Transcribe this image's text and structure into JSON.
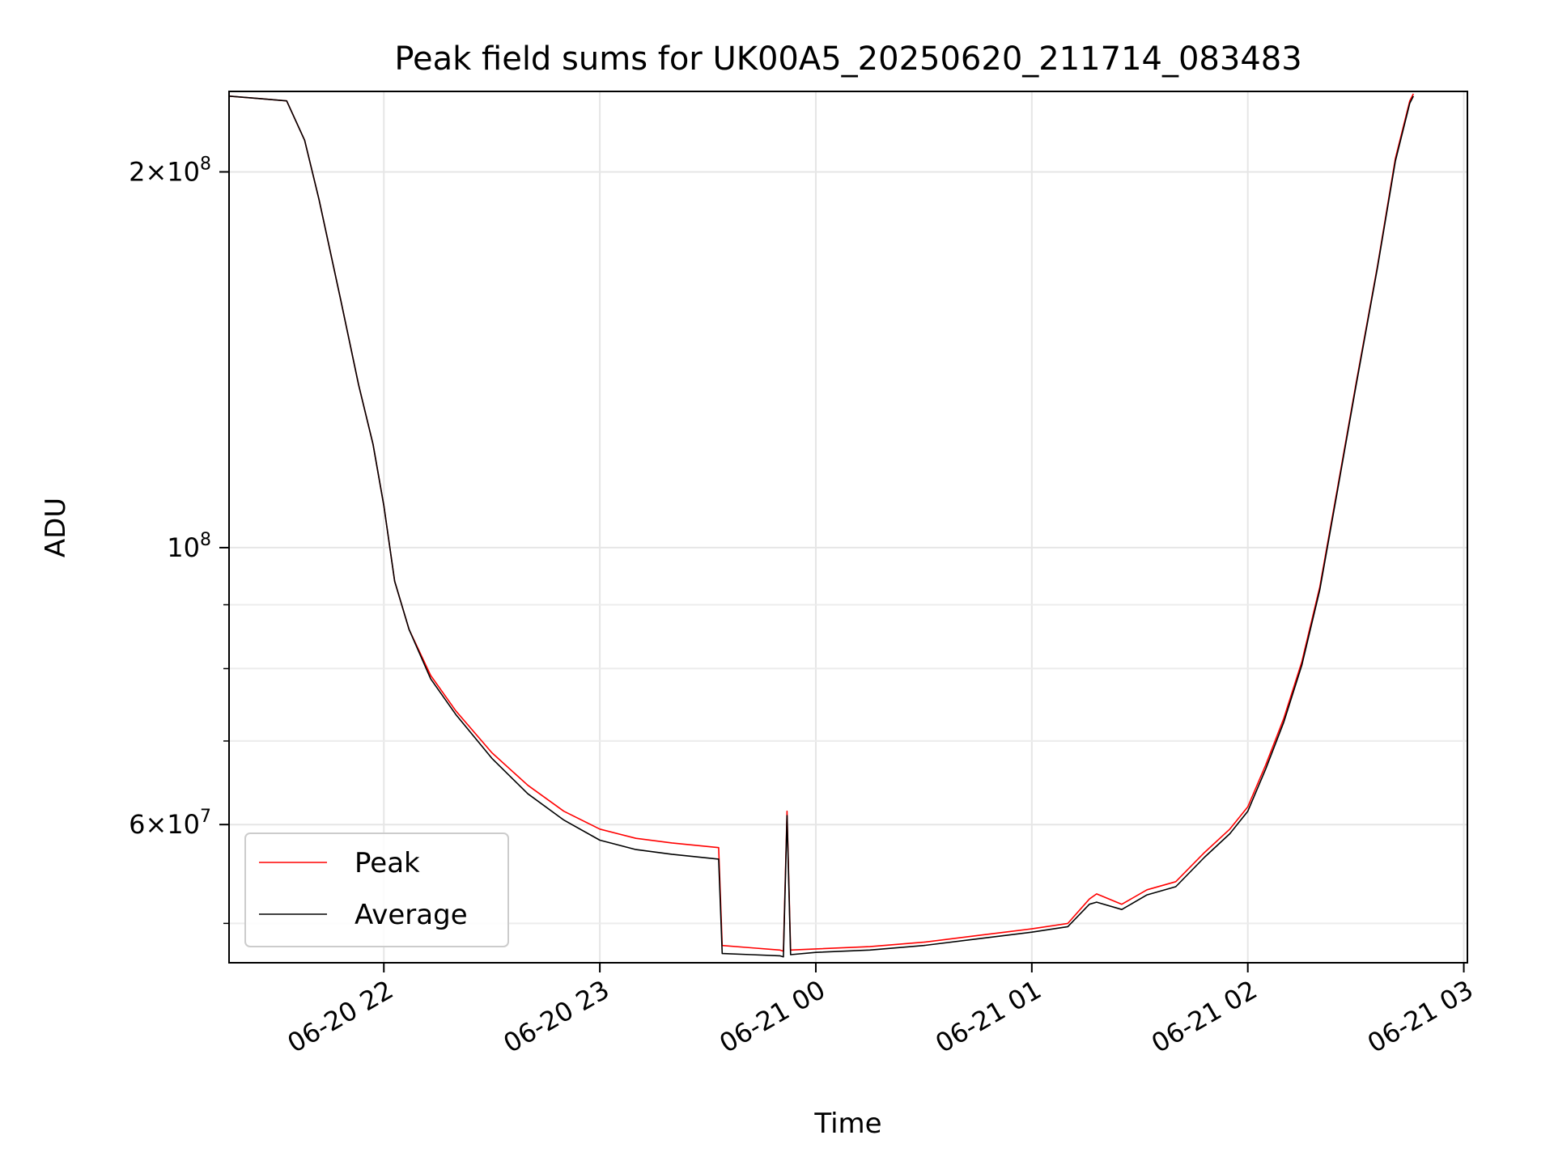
{
  "chart_data": {
    "type": "line",
    "title": "Peak field sums for UK00A5_20250620_211714_083483",
    "xlabel": "Time",
    "ylabel": "ADU",
    "y_scale": "log",
    "ylim": [
      46500000,
      232000000
    ],
    "xlim": [
      "2025-06-20 21:17",
      "2025-06-21 03:01"
    ],
    "grid": true,
    "legend_position": "lower-left",
    "x_ticks": [
      {
        "time": "2025-06-20 22:00",
        "label": "06-20 22"
      },
      {
        "time": "2025-06-20 23:00",
        "label": "06-20 23"
      },
      {
        "time": "2025-06-21 00:00",
        "label": "06-21 00"
      },
      {
        "time": "2025-06-21 01:00",
        "label": "06-21 01"
      },
      {
        "time": "2025-06-21 02:00",
        "label": "06-21 02"
      },
      {
        "time": "2025-06-21 03:00",
        "label": "06-21 03"
      }
    ],
    "y_major_ticks": [
      {
        "value": 60000000,
        "mantissa": "6",
        "exponent": "7"
      },
      {
        "value": 100000000,
        "mantissa": "",
        "exponent": "8"
      },
      {
        "value": 200000000,
        "mantissa": "2",
        "exponent": "8"
      }
    ],
    "y_minor_ticks": [
      50000000,
      70000000,
      80000000,
      90000000
    ],
    "series": [
      {
        "name": "Peak",
        "color": "#ff0000",
        "points": [
          [
            "2025-06-20 21:17",
            230000000
          ],
          [
            "2025-06-20 21:25",
            229000000
          ],
          [
            "2025-06-20 21:33",
            228000000
          ],
          [
            "2025-06-20 21:38",
            212000000
          ],
          [
            "2025-06-20 21:42",
            190000000
          ],
          [
            "2025-06-20 21:48",
            158000000
          ],
          [
            "2025-06-20 21:53",
            135000000
          ],
          [
            "2025-06-20 21:57",
            121000000
          ],
          [
            "2025-06-20 22:00",
            108000000
          ],
          [
            "2025-06-20 22:03",
            94000000
          ],
          [
            "2025-06-20 22:07",
            86000000
          ],
          [
            "2025-06-20 22:13",
            79000000
          ],
          [
            "2025-06-20 22:20",
            74000000
          ],
          [
            "2025-06-20 22:30",
            68500000
          ],
          [
            "2025-06-20 22:40",
            64500000
          ],
          [
            "2025-06-20 22:50",
            61500000
          ],
          [
            "2025-06-20 23:00",
            59500000
          ],
          [
            "2025-06-20 23:10",
            58500000
          ],
          [
            "2025-06-20 23:20",
            58000000
          ],
          [
            "2025-06-20 23:33",
            57500000
          ],
          [
            "2025-06-20 23:34",
            48000000
          ],
          [
            "2025-06-20 23:42",
            47800000
          ],
          [
            "2025-06-20 23:50",
            47600000
          ],
          [
            "2025-06-20 23:51",
            47500000
          ],
          [
            "2025-06-20 23:52",
            61500000
          ],
          [
            "2025-06-20 23:53",
            47600000
          ],
          [
            "2025-06-21 00:00",
            47700000
          ],
          [
            "2025-06-21 00:15",
            47900000
          ],
          [
            "2025-06-21 00:30",
            48300000
          ],
          [
            "2025-06-21 00:45",
            48900000
          ],
          [
            "2025-06-21 01:00",
            49500000
          ],
          [
            "2025-06-21 01:10",
            50000000
          ],
          [
            "2025-06-21 01:16",
            52300000
          ],
          [
            "2025-06-21 01:18",
            52800000
          ],
          [
            "2025-06-21 01:25",
            51800000
          ],
          [
            "2025-06-21 01:32",
            53200000
          ],
          [
            "2025-06-21 01:40",
            54000000
          ],
          [
            "2025-06-21 01:48",
            57000000
          ],
          [
            "2025-06-21 01:55",
            59500000
          ],
          [
            "2025-06-21 02:00",
            62000000
          ],
          [
            "2025-06-21 02:05",
            67000000
          ],
          [
            "2025-06-21 02:10",
            73000000
          ],
          [
            "2025-06-21 02:15",
            81000000
          ],
          [
            "2025-06-21 02:20",
            93000000
          ],
          [
            "2025-06-21 02:25",
            112000000
          ],
          [
            "2025-06-21 02:30",
            135000000
          ],
          [
            "2025-06-21 02:36",
            168000000
          ],
          [
            "2025-06-21 02:41",
            205000000
          ],
          [
            "2025-06-21 02:45",
            228000000
          ],
          [
            "2025-06-21 02:46",
            231000000
          ]
        ]
      },
      {
        "name": "Average",
        "color": "#000000",
        "points": [
          [
            "2025-06-20 21:17",
            230000000
          ],
          [
            "2025-06-20 21:25",
            229000000
          ],
          [
            "2025-06-20 21:33",
            228000000
          ],
          [
            "2025-06-20 21:38",
            212000000
          ],
          [
            "2025-06-20 21:42",
            190000000
          ],
          [
            "2025-06-20 21:48",
            158000000
          ],
          [
            "2025-06-20 21:53",
            135000000
          ],
          [
            "2025-06-20 21:57",
            121000000
          ],
          [
            "2025-06-20 22:00",
            108000000
          ],
          [
            "2025-06-20 22:03",
            94000000
          ],
          [
            "2025-06-20 22:07",
            86000000
          ],
          [
            "2025-06-20 22:13",
            78500000
          ],
          [
            "2025-06-20 22:20",
            73500000
          ],
          [
            "2025-06-20 22:30",
            67800000
          ],
          [
            "2025-06-20 22:40",
            63500000
          ],
          [
            "2025-06-20 22:50",
            60500000
          ],
          [
            "2025-06-20 23:00",
            58300000
          ],
          [
            "2025-06-20 23:10",
            57300000
          ],
          [
            "2025-06-20 23:20",
            56800000
          ],
          [
            "2025-06-20 23:33",
            56300000
          ],
          [
            "2025-06-20 23:34",
            47300000
          ],
          [
            "2025-06-20 23:42",
            47200000
          ],
          [
            "2025-06-20 23:50",
            47100000
          ],
          [
            "2025-06-20 23:51",
            47000000
          ],
          [
            "2025-06-20 23:52",
            61000000
          ],
          [
            "2025-06-20 23:53",
            47200000
          ],
          [
            "2025-06-21 00:00",
            47400000
          ],
          [
            "2025-06-21 00:15",
            47600000
          ],
          [
            "2025-06-21 00:30",
            48000000
          ],
          [
            "2025-06-21 00:45",
            48600000
          ],
          [
            "2025-06-21 01:00",
            49200000
          ],
          [
            "2025-06-21 01:10",
            49700000
          ],
          [
            "2025-06-21 01:16",
            51800000
          ],
          [
            "2025-06-21 01:18",
            52000000
          ],
          [
            "2025-06-21 01:25",
            51300000
          ],
          [
            "2025-06-21 01:32",
            52700000
          ],
          [
            "2025-06-21 01:40",
            53500000
          ],
          [
            "2025-06-21 01:48",
            56500000
          ],
          [
            "2025-06-21 01:55",
            59000000
          ],
          [
            "2025-06-21 02:00",
            61500000
          ],
          [
            "2025-06-21 02:05",
            66500000
          ],
          [
            "2025-06-21 02:10",
            72500000
          ],
          [
            "2025-06-21 02:15",
            80500000
          ],
          [
            "2025-06-21 02:20",
            92500000
          ],
          [
            "2025-06-21 02:25",
            111500000
          ],
          [
            "2025-06-21 02:30",
            134500000
          ],
          [
            "2025-06-21 02:36",
            167500000
          ],
          [
            "2025-06-21 02:41",
            204000000
          ],
          [
            "2025-06-21 02:45",
            227000000
          ],
          [
            "2025-06-21 02:46",
            230000000
          ]
        ]
      }
    ]
  }
}
